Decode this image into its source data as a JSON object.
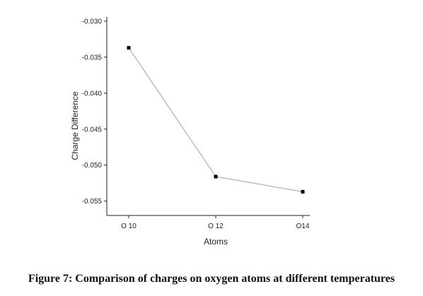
{
  "caption": "Figure 7: Comparison of charges on oxygen atoms at different temperatures",
  "chart_data": {
    "type": "line",
    "categories": [
      "O 10",
      "O 12",
      "O14"
    ],
    "values": [
      -0.0337,
      -0.0516,
      -0.0537
    ],
    "xlabel": "Atoms",
    "ylabel": "Charge Difference",
    "ylim": [
      -0.057,
      -0.03
    ],
    "yticks": [
      -0.03,
      -0.035,
      -0.04,
      -0.045,
      -0.05,
      -0.055
    ],
    "ytick_labels": [
      "-0.030",
      "-0.035",
      "-0.040",
      "-0.045",
      "-0.050",
      "-0.055"
    ],
    "grid": false,
    "line_color": "#b0b0b0",
    "marker_color": "#000000",
    "axis_color": "#222222"
  }
}
